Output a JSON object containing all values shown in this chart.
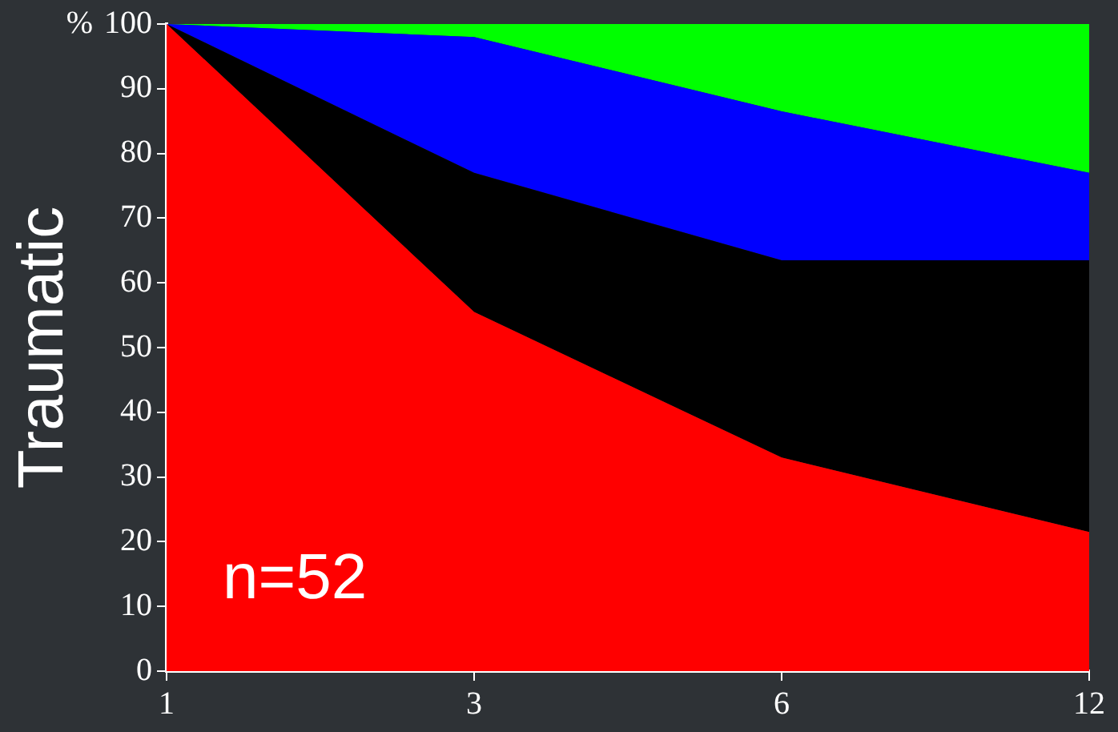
{
  "chart_data": {
    "type": "area",
    "stacked": true,
    "ylabel": "Traumatic",
    "annotations": [
      "%",
      "n=52"
    ],
    "categories": [
      "1",
      "3",
      "6",
      "12"
    ],
    "series": [
      {
        "color": "#ff0000",
        "values": [
          100,
          55.5,
          33,
          21.5
        ]
      },
      {
        "color": "#000000",
        "values": [
          0,
          21.5,
          30.5,
          42
        ]
      },
      {
        "color": "#0000ff",
        "values": [
          0,
          21,
          23,
          13.5
        ]
      },
      {
        "color": "#00ff00",
        "values": [
          0,
          2,
          13.5,
          23
        ]
      }
    ],
    "ylim": [
      0,
      100
    ],
    "yticks": [
      0,
      10,
      20,
      30,
      40,
      50,
      60,
      70,
      80,
      90,
      100
    ],
    "grid": false,
    "legend": false
  }
}
